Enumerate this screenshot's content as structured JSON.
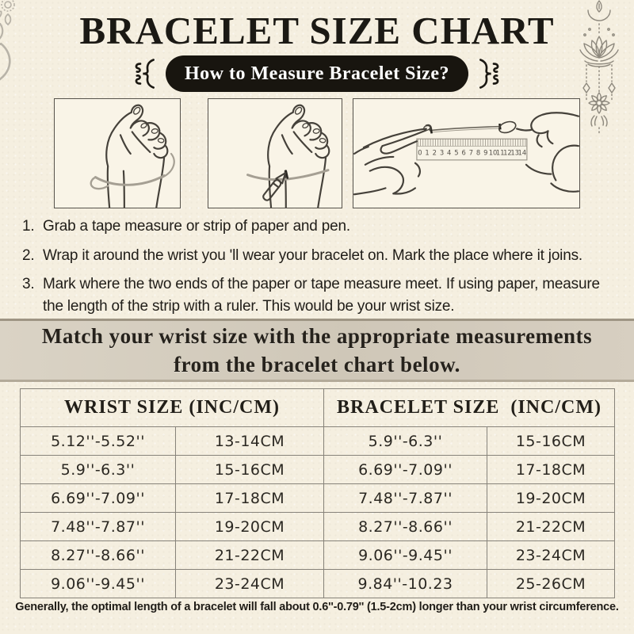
{
  "colors": {
    "background": "#f5efe0",
    "banner_bg": "#d2cabb",
    "badge_bg": "#18150f",
    "badge_text": "#ffffff",
    "text_dark": "#23201b",
    "table_border": "#87837a",
    "line_art": "#45413a",
    "decor_gray": "#b8b3a8"
  },
  "header": {
    "title": "BRACELET SIZE CHART",
    "badge_label": "How to Measure Bracelet Size?"
  },
  "illustrations": {
    "items": [
      "wrap-tape-around-wrist",
      "mark-with-pen",
      "measure-strip-with-ruler"
    ],
    "ruler_numbers": [
      "0",
      "1",
      "2",
      "3",
      "4",
      "5",
      "6",
      "7",
      "8",
      "9",
      "10",
      "11",
      "12",
      "13",
      "14"
    ]
  },
  "steps": [
    {
      "num": "1.",
      "text": "Grab a tape measure or strip of paper and pen."
    },
    {
      "num": "2.",
      "text": "Wrap it around the wrist you 'll wear your bracelet on. Mark the place where it joins."
    },
    {
      "num": "3.",
      "text": "Mark where the two ends of the paper or tape measure meet. If using paper, measure the length of the strip with a ruler. This would be your wrist size."
    }
  ],
  "banner": {
    "line1": "Match your wrist size with the appropriate measurements",
    "line2": "from the bracelet chart below."
  },
  "size_table": {
    "headers": [
      "WRIST SIZE (INC/CM)",
      "BRACELET SIZE  (INC/CM)"
    ],
    "rows": [
      [
        "5.12''-5.52''",
        "13-14CM",
        "5.9''-6.3''",
        "15-16CM"
      ],
      [
        "5.9''-6.3''",
        "15-16CM",
        "6.69''-7.09''",
        "17-18CM"
      ],
      [
        "6.69''-7.09''",
        "17-18CM",
        "7.48''-7.87''",
        "19-20CM"
      ],
      [
        "7.48''-7.87''",
        "19-20CM",
        "8.27''-8.66''",
        "21-22CM"
      ],
      [
        "8.27''-8.66''",
        "21-22CM",
        "9.06''-9.45''",
        "23-24CM"
      ],
      [
        "9.06''-9.45''",
        "23-24CM",
        "9.84''-10.23",
        "25-26CM"
      ]
    ]
  },
  "footer_note": "Generally, the optimal length of a bracelet will fall about 0.6''-0.79'' (1.5-2cm) longer than your wrist circumference."
}
